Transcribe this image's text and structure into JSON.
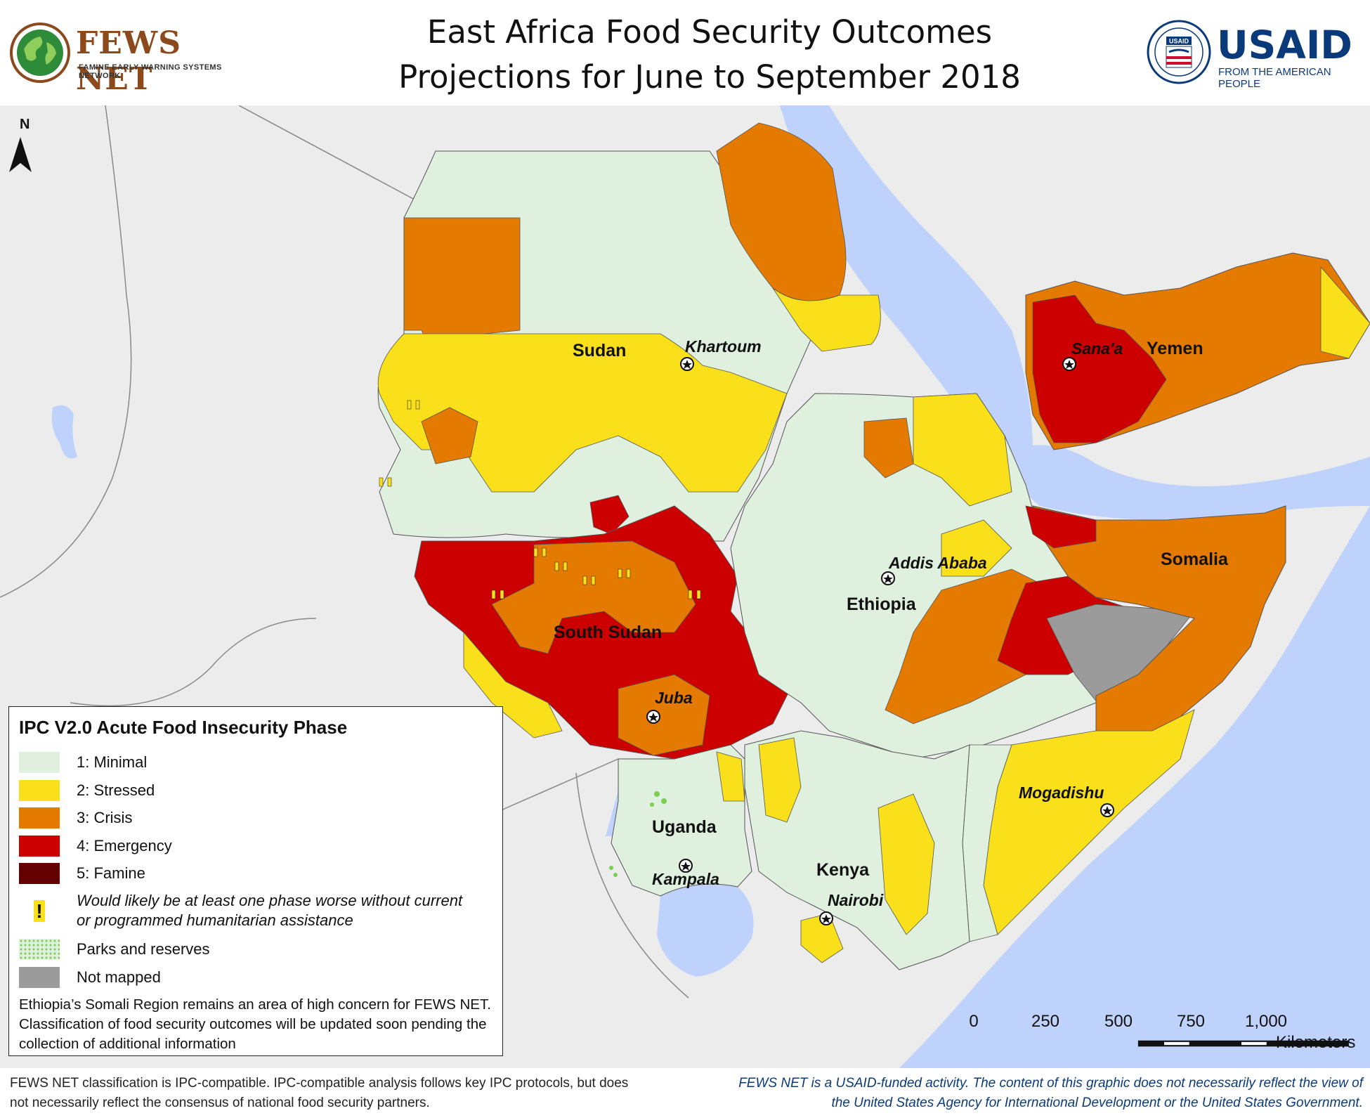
{
  "header": {
    "title_line1": "East Africa Food Security Outcomes",
    "title_line2": "Projections for June to September 2018",
    "left_logo": {
      "name": "FEWS NET",
      "subtitle": "FAMINE EARLY WARNING SYSTEMS NETWORK",
      "icon": "globe-icon"
    },
    "right_logo": {
      "name": "USAID",
      "subtitle": "FROM THE AMERICAN PEOPLE",
      "icon": "usaid-seal-icon",
      "seal_text": "USAID"
    }
  },
  "map": {
    "north_arrow_icon": "north-arrow-icon",
    "country_labels": [
      "Sudan",
      "Yemen",
      "Somalia",
      "Ethiopia",
      "South Sudan",
      "Uganda",
      "Kenya"
    ],
    "city_labels": [
      "Khartoum",
      "Sana'a",
      "Addis Ababa",
      "Juba",
      "Mogadishu",
      "Kampala",
      "Nairobi"
    ],
    "colors": {
      "background": "#ececec",
      "water": "#bfd2fb",
      "minimal": "#dff0df",
      "stressed": "#f9e01b",
      "crisis": "#e57a00",
      "emergency": "#cc0000",
      "famine": "#640000",
      "not_mapped": "#9b9b9b",
      "parks": "#9fe07a"
    }
  },
  "legend": {
    "title": "IPC V2.0 Acute Food Insecurity Phase",
    "items": [
      {
        "label": "1: Minimal",
        "color": "#dff0df"
      },
      {
        "label": "2: Stressed",
        "color": "#f9e01b"
      },
      {
        "label": "3: Crisis",
        "color": "#e57a00"
      },
      {
        "label": "4: Emergency",
        "color": "#cc0000"
      },
      {
        "label": "5: Famine",
        "color": "#640000"
      }
    ],
    "assistance_symbol": "!",
    "assistance_label": "Would likely be at least one phase worse without current or programmed humanitarian assistance",
    "parks_label": "Parks and reserves",
    "not_mapped_label": "Not mapped",
    "note": "Ethiopia’s Somali Region remains an area of high concern for FEWS NET. Classification of food security outcomes will be updated soon pending the collection of additional information"
  },
  "scale": {
    "ticks": [
      "0",
      "250",
      "500",
      "750",
      "1,000"
    ],
    "unit": "Kilometers"
  },
  "footer": {
    "left": "FEWS NET classification is IPC-compatible. IPC-compatible analysis follows key IPC protocols, but does not necessarily reflect the consensus of national food security partners.",
    "right": "FEWS NET is a USAID-funded activity. The content of this graphic does not necessarily reflect the view of the United States Agency for International Development or the United States Government."
  }
}
